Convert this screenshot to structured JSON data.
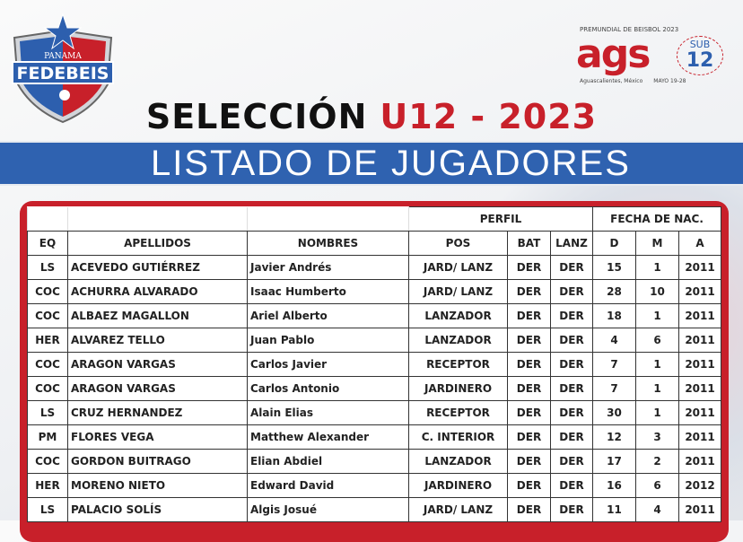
{
  "logos": {
    "left": {
      "top_text": "PANAMA",
      "name": "FEDEBEIS"
    },
    "right": {
      "top_text": "PREMUNDIAL DE BEISBOL 2023",
      "word": "ags",
      "sub": "SUB",
      "num": "12",
      "place": "Aguascalientes, México",
      "dates": "MAYO 19-28"
    }
  },
  "title": {
    "part1": "SELECCIÓN",
    "part2": "U12 - 2023"
  },
  "banner": "LISTADO DE JUGADORES",
  "table": {
    "group_headers": {
      "perfil": "PERFIL",
      "fecha": "FECHA DE NAC."
    },
    "columns": [
      "EQ",
      "APELLIDOS",
      "NOMBRES",
      "POS",
      "BAT",
      "LANZ",
      "D",
      "M",
      "A"
    ],
    "rows": [
      [
        "LS",
        "ACEVEDO GUTIÉRREZ",
        "Javier Andrés",
        "JARD/ LANZ",
        "DER",
        "DER",
        "15",
        "1",
        "2011"
      ],
      [
        "COC",
        "ACHURRA ALVARADO",
        "Isaac Humberto",
        "JARD/ LANZ",
        "DER",
        "DER",
        "28",
        "10",
        "2011"
      ],
      [
        "COC",
        "ALBAEZ MAGALLON",
        "Ariel Alberto",
        "LANZADOR",
        "DER",
        "DER",
        "18",
        "1",
        "2011"
      ],
      [
        "HER",
        "ALVAREZ TELLO",
        "Juan Pablo",
        "LANZADOR",
        "DER",
        "DER",
        "4",
        "6",
        "2011"
      ],
      [
        "COC",
        "ARAGON VARGAS",
        "Carlos Javier",
        "RECEPTOR",
        "DER",
        "DER",
        "7",
        "1",
        "2011"
      ],
      [
        "COC",
        "ARAGON VARGAS",
        "Carlos Antonio",
        "JARDINERO",
        "DER",
        "DER",
        "7",
        "1",
        "2011"
      ],
      [
        "LS",
        "CRUZ HERNANDEZ",
        "Alain Elias",
        "RECEPTOR",
        "DER",
        "DER",
        "30",
        "1",
        "2011"
      ],
      [
        "PM",
        "FLORES VEGA",
        "Matthew Alexander",
        "C. INTERIOR",
        "DER",
        "DER",
        "12",
        "3",
        "2011"
      ],
      [
        "COC",
        "GORDON BUITRAGO",
        "Elian Abdiel",
        "LANZADOR",
        "DER",
        "DER",
        "17",
        "2",
        "2011"
      ],
      [
        "HER",
        "MORENO NIETO",
        "Edward David",
        "JARDINERO",
        "DER",
        "DER",
        "16",
        "6",
        "2012"
      ],
      [
        "LS",
        "PALACIO SOLÍS",
        "Algis Josué",
        "JARD/ LANZ",
        "DER",
        "DER",
        "11",
        "4",
        "2011"
      ]
    ]
  }
}
